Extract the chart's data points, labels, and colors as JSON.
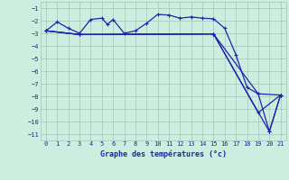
{
  "background_color": "#cceee0",
  "grid_color": "#aaccbb",
  "line_color": "#2222aa",
  "xlabel": "Graphe des températures (°c)",
  "ylim": [
    -11.5,
    -0.5
  ],
  "xlim": [
    -0.5,
    21.5
  ],
  "yticks": [
    -11,
    -10,
    -9,
    -8,
    -7,
    -6,
    -5,
    -4,
    -3,
    -2,
    -1
  ],
  "xticks": [
    0,
    1,
    2,
    3,
    4,
    5,
    6,
    7,
    8,
    9,
    10,
    11,
    12,
    13,
    14,
    15,
    16,
    17,
    18,
    19,
    20,
    21
  ],
  "series": [
    {
      "x": [
        0,
        1,
        2,
        3,
        4,
        5,
        5.5,
        6,
        7,
        8,
        9,
        10,
        11,
        12,
        13,
        14,
        15,
        16,
        17,
        18,
        19,
        20,
        21
      ],
      "y": [
        -2.8,
        -2.1,
        -2.6,
        -3.0,
        -1.9,
        -1.8,
        -2.3,
        -1.9,
        -3.0,
        -2.8,
        -2.2,
        -1.5,
        -1.55,
        -1.8,
        -1.7,
        -1.8,
        -1.85,
        -2.6,
        -4.7,
        -7.3,
        -7.8,
        -10.8,
        -7.9
      ]
    },
    {
      "x": [
        0,
        3,
        15,
        19,
        21
      ],
      "y": [
        -2.8,
        -3.1,
        -3.05,
        -7.8,
        -7.9
      ]
    },
    {
      "x": [
        0,
        3,
        15,
        19,
        21
      ],
      "y": [
        -2.8,
        -3.1,
        -3.05,
        -9.3,
        -7.9
      ]
    },
    {
      "x": [
        0,
        3,
        15,
        20,
        21
      ],
      "y": [
        -2.8,
        -3.1,
        -3.05,
        -10.8,
        -7.9
      ]
    }
  ]
}
